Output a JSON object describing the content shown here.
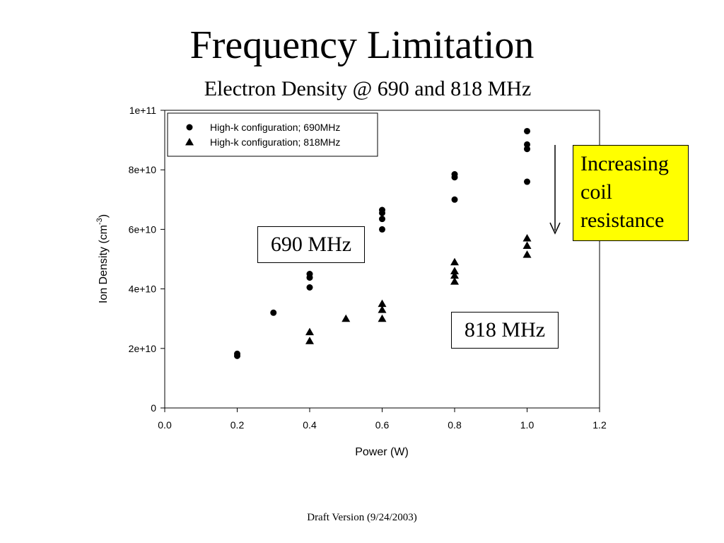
{
  "slide": {
    "title": "Frequency Limitation",
    "subtitle": "Electron Density @ 690 and 818 MHz",
    "footer": "Draft Version (9/24/2003)"
  },
  "annotations": {
    "label_690": "690 MHz",
    "label_818": "818 MHz",
    "increasing_note": "Increasing\ncoil\nresistance"
  },
  "chart_data": {
    "type": "scatter",
    "title": "",
    "xlabel": "Power (W)",
    "ylabel": "Ion Density (cm",
    "ylabel_superscript": "-3",
    "ylabel_suffix": ")",
    "xlim": [
      0.0,
      1.2
    ],
    "ylim": [
      0,
      100000000000
    ],
    "x_ticks": [
      "0.0",
      "0.2",
      "0.4",
      "0.6",
      "0.8",
      "1.0",
      "1.2"
    ],
    "y_ticks": [
      "0",
      "2e+10",
      "4e+10",
      "6e+10",
      "8e+10",
      "1e+11"
    ],
    "grid": false,
    "legend_position": "top-left",
    "series": [
      {
        "name": "High-k configuration; 690MHz",
        "marker": "circle",
        "points": [
          [
            0.2,
            17500000000
          ],
          [
            0.2,
            18200000000
          ],
          [
            0.3,
            32000000000
          ],
          [
            0.4,
            40500000000
          ],
          [
            0.4,
            43800000000
          ],
          [
            0.4,
            45000000000
          ],
          [
            0.6,
            60000000000
          ],
          [
            0.6,
            63500000000
          ],
          [
            0.6,
            65500000000
          ],
          [
            0.6,
            66500000000
          ],
          [
            0.8,
            70000000000
          ],
          [
            0.8,
            77500000000
          ],
          [
            0.8,
            78500000000
          ],
          [
            1.0,
            76000000000
          ],
          [
            1.0,
            87000000000
          ],
          [
            1.0,
            88500000000
          ],
          [
            1.0,
            93000000000
          ]
        ]
      },
      {
        "name": "High-k configuration; 818MHz",
        "marker": "triangle",
        "points": [
          [
            0.4,
            22500000000
          ],
          [
            0.4,
            25500000000
          ],
          [
            0.5,
            30000000000
          ],
          [
            0.6,
            30000000000
          ],
          [
            0.6,
            33000000000
          ],
          [
            0.6,
            35000000000
          ],
          [
            0.8,
            42500000000
          ],
          [
            0.8,
            44500000000
          ],
          [
            0.8,
            46000000000
          ],
          [
            0.8,
            49000000000
          ],
          [
            1.0,
            51500000000
          ],
          [
            1.0,
            54500000000
          ],
          [
            1.0,
            57000000000
          ]
        ]
      }
    ]
  }
}
